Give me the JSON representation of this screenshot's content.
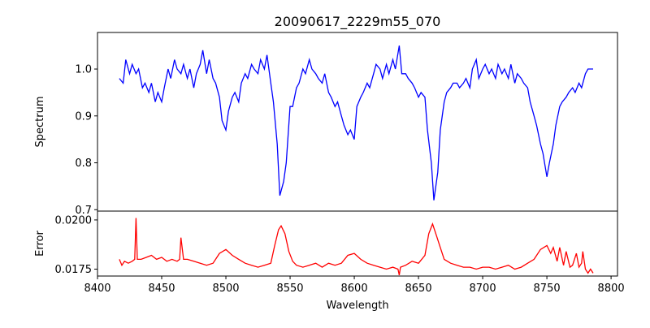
{
  "chart_data": [
    {
      "type": "line",
      "title": "20090617_2229m55_070",
      "ylabel": "Spectrum",
      "xlabel": "",
      "xlim": [
        8400,
        8805
      ],
      "ylim": [
        0.697,
        1.078
      ],
      "yticks": [
        "0.7",
        "0.8",
        "0.9",
        "1.0"
      ],
      "ytick_values": [
        0.7,
        0.8,
        0.9,
        1.0
      ],
      "color": "#0000ff",
      "x": [
        8417,
        8420,
        8422,
        8425,
        8427,
        8430,
        8432,
        8435,
        8437,
        8440,
        8442,
        8445,
        8447,
        8450,
        8452,
        8455,
        8457,
        8460,
        8462,
        8465,
        8467,
        8470,
        8472,
        8475,
        8477,
        8480,
        8482,
        8485,
        8487,
        8490,
        8492,
        8495,
        8497,
        8500,
        8502,
        8505,
        8507,
        8510,
        8512,
        8515,
        8517,
        8520,
        8522,
        8525,
        8527,
        8530,
        8532,
        8535,
        8537,
        8540,
        8542,
        8545,
        8547,
        8550,
        8552,
        8555,
        8557,
        8560,
        8562,
        8565,
        8567,
        8570,
        8572,
        8575,
        8577,
        8580,
        8582,
        8585,
        8587,
        8590,
        8592,
        8595,
        8597,
        8600,
        8602,
        8605,
        8607,
        8610,
        8612,
        8615,
        8617,
        8620,
        8622,
        8625,
        8627,
        8630,
        8632,
        8635,
        8637,
        8640,
        8642,
        8645,
        8647,
        8650,
        8652,
        8655,
        8657,
        8660,
        8662,
        8665,
        8667,
        8670,
        8672,
        8675,
        8677,
        8680,
        8682,
        8685,
        8687,
        8690,
        8692,
        8695,
        8697,
        8700,
        8702,
        8705,
        8707,
        8710,
        8712,
        8715,
        8717,
        8720,
        8722,
        8725,
        8727,
        8730,
        8732,
        8735,
        8737,
        8740,
        8742,
        8745,
        8747,
        8750,
        8752,
        8755,
        8757,
        8760,
        8762,
        8765,
        8767,
        8770,
        8772,
        8775,
        8777,
        8780,
        8782,
        8786
      ],
      "y": [
        0.98,
        0.97,
        1.02,
        0.99,
        1.01,
        0.99,
        1.0,
        0.96,
        0.97,
        0.95,
        0.97,
        0.93,
        0.95,
        0.93,
        0.96,
        1.0,
        0.98,
        1.02,
        1.0,
        0.99,
        1.01,
        0.98,
        1.0,
        0.96,
        0.99,
        1.01,
        1.04,
        0.99,
        1.02,
        0.98,
        0.97,
        0.94,
        0.89,
        0.87,
        0.91,
        0.94,
        0.95,
        0.93,
        0.97,
        0.99,
        0.98,
        1.01,
        1.0,
        0.99,
        1.02,
        1.0,
        1.03,
        0.97,
        0.93,
        0.84,
        0.73,
        0.76,
        0.8,
        0.92,
        0.92,
        0.96,
        0.97,
        1.0,
        0.99,
        1.02,
        1.0,
        0.99,
        0.98,
        0.97,
        0.99,
        0.95,
        0.94,
        0.92,
        0.93,
        0.9,
        0.88,
        0.86,
        0.87,
        0.85,
        0.92,
        0.94,
        0.95,
        0.97,
        0.96,
        0.99,
        1.01,
        1.0,
        0.98,
        1.01,
        0.99,
        1.02,
        1.0,
        1.05,
        0.99,
        0.99,
        0.98,
        0.97,
        0.96,
        0.94,
        0.95,
        0.94,
        0.87,
        0.8,
        0.72,
        0.78,
        0.87,
        0.93,
        0.95,
        0.96,
        0.97,
        0.97,
        0.96,
        0.97,
        0.98,
        0.96,
        1.0,
        1.02,
        0.98,
        1.0,
        1.01,
        0.99,
        1.0,
        0.98,
        1.01,
        0.99,
        1.0,
        0.98,
        1.01,
        0.97,
        0.99,
        0.98,
        0.97,
        0.96,
        0.93,
        0.9,
        0.88,
        0.84,
        0.82,
        0.77,
        0.8,
        0.84,
        0.88,
        0.92,
        0.93,
        0.94,
        0.95,
        0.96,
        0.95,
        0.97,
        0.96,
        0.99,
        1.0,
        1.0
      ]
    },
    {
      "type": "line",
      "ylabel": "Error",
      "xlabel": "Wavelength",
      "xlim": [
        8400,
        8805
      ],
      "ylim": [
        0.01715,
        0.02045
      ],
      "yticks": [
        "0.0175",
        "0.0200"
      ],
      "ytick_values": [
        0.0175,
        0.02
      ],
      "color": "#ff0000",
      "xticks": [
        "8400",
        "8450",
        "8500",
        "8550",
        "8600",
        "8650",
        "8700",
        "8750",
        "8800"
      ],
      "xtick_values": [
        8400,
        8450,
        8500,
        8550,
        8600,
        8650,
        8700,
        8750,
        8800
      ],
      "x": [
        8417,
        8419,
        8421,
        8424,
        8427,
        8429,
        8430,
        8431,
        8434,
        8438,
        8442,
        8446,
        8450,
        8454,
        8458,
        8462,
        8464,
        8465,
        8467,
        8470,
        8475,
        8480,
        8485,
        8490,
        8495,
        8500,
        8505,
        8510,
        8515,
        8520,
        8525,
        8530,
        8535,
        8538,
        8541,
        8543,
        8546,
        8549,
        8552,
        8555,
        8560,
        8565,
        8570,
        8575,
        8580,
        8585,
        8590,
        8595,
        8600,
        8605,
        8610,
        8615,
        8620,
        8625,
        8630,
        8634,
        8635,
        8636,
        8640,
        8645,
        8650,
        8655,
        8658,
        8661,
        8664,
        8667,
        8670,
        8675,
        8680,
        8685,
        8690,
        8695,
        8700,
        8705,
        8710,
        8715,
        8720,
        8725,
        8730,
        8735,
        8740,
        8745,
        8750,
        8753,
        8755,
        8758,
        8760,
        8763,
        8765,
        8768,
        8770,
        8773,
        8775,
        8777,
        8778,
        8780,
        8782,
        8784,
        8786
      ],
      "y": [
        0.018,
        0.0177,
        0.0179,
        0.0178,
        0.0179,
        0.018,
        0.0201,
        0.018,
        0.018,
        0.0181,
        0.0182,
        0.018,
        0.0181,
        0.0179,
        0.018,
        0.0179,
        0.018,
        0.0191,
        0.018,
        0.018,
        0.0179,
        0.0178,
        0.0177,
        0.0178,
        0.0183,
        0.0185,
        0.0182,
        0.018,
        0.0178,
        0.0177,
        0.0176,
        0.0177,
        0.0178,
        0.0187,
        0.0195,
        0.0197,
        0.0193,
        0.0184,
        0.0179,
        0.0177,
        0.0176,
        0.0177,
        0.0178,
        0.0176,
        0.0178,
        0.0177,
        0.0178,
        0.0182,
        0.0183,
        0.018,
        0.0178,
        0.0177,
        0.0176,
        0.0175,
        0.0176,
        0.0175,
        0.0172,
        0.0176,
        0.0177,
        0.0179,
        0.0178,
        0.0182,
        0.0193,
        0.0198,
        0.0192,
        0.0186,
        0.018,
        0.0178,
        0.0177,
        0.0176,
        0.0176,
        0.0175,
        0.0176,
        0.0176,
        0.0175,
        0.0176,
        0.0177,
        0.0175,
        0.0176,
        0.0178,
        0.018,
        0.0185,
        0.0187,
        0.0183,
        0.0186,
        0.0179,
        0.0186,
        0.0177,
        0.0184,
        0.0176,
        0.0177,
        0.0183,
        0.0176,
        0.0178,
        0.0184,
        0.0175,
        0.0173,
        0.0175,
        0.0173
      ]
    }
  ]
}
